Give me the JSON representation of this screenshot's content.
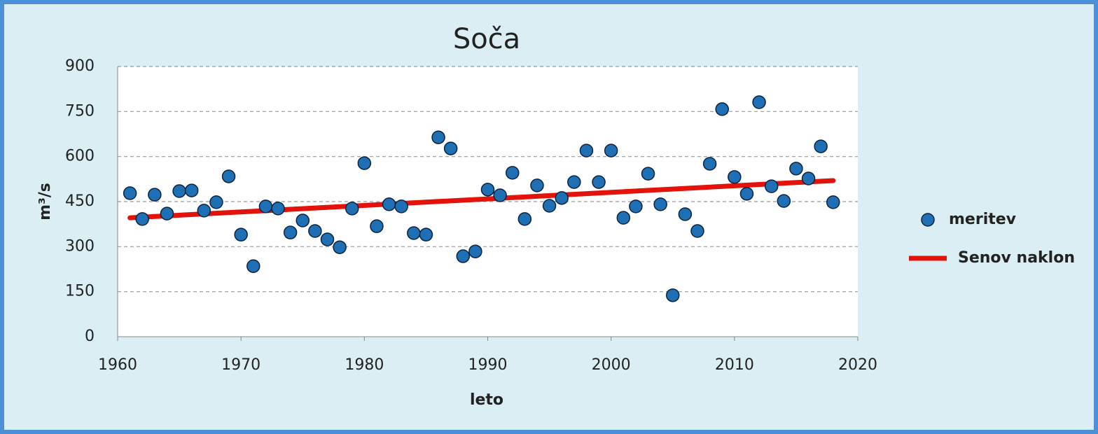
{
  "chart_data": {
    "type": "scatter",
    "title": "Soča",
    "xlabel": "leto",
    "ylabel": "m³/s",
    "xlim": [
      1960,
      2020
    ],
    "xticks": [
      1960,
      1970,
      1980,
      1990,
      2000,
      2010,
      2020
    ],
    "ylim": [
      0,
      900
    ],
    "yticks": [
      0,
      150,
      300,
      450,
      600,
      750,
      900
    ],
    "grid": true,
    "legend": "right",
    "series": [
      {
        "name": "meritev",
        "type": "scatter",
        "color": "#1f6fb4",
        "x": [
          1961,
          1962,
          1963,
          1964,
          1965,
          1966,
          1967,
          1968,
          1969,
          1970,
          1971,
          1972,
          1973,
          1974,
          1975,
          1976,
          1977,
          1978,
          1979,
          1980,
          1981,
          1982,
          1983,
          1984,
          1985,
          1986,
          1987,
          1988,
          1989,
          1990,
          1991,
          1992,
          1993,
          1994,
          1995,
          1996,
          1997,
          1998,
          1999,
          2000,
          2001,
          2002,
          2003,
          2004,
          2005,
          2006,
          2007,
          2008,
          2009,
          2010,
          2011,
          2012,
          2013,
          2014,
          2015,
          2016,
          2017,
          2018
        ],
        "values": [
          478,
          392,
          473,
          410,
          485,
          487,
          420,
          448,
          534,
          340,
          235,
          434,
          427,
          347,
          387,
          352,
          324,
          298,
          427,
          578,
          368,
          441,
          434,
          345,
          340,
          664,
          627,
          268,
          284,
          490,
          471,
          546,
          392,
          504,
          436,
          462,
          515,
          620,
          515,
          620,
          396,
          434,
          543,
          441,
          138,
          408,
          352,
          576,
          758,
          532,
          476,
          781,
          501,
          452,
          560,
          527,
          634,
          448
        ]
      },
      {
        "name": "Senov naklon",
        "type": "line",
        "color": "#e3120b",
        "x": [
          1961,
          2018
        ],
        "values": [
          396,
          520
        ]
      }
    ]
  }
}
